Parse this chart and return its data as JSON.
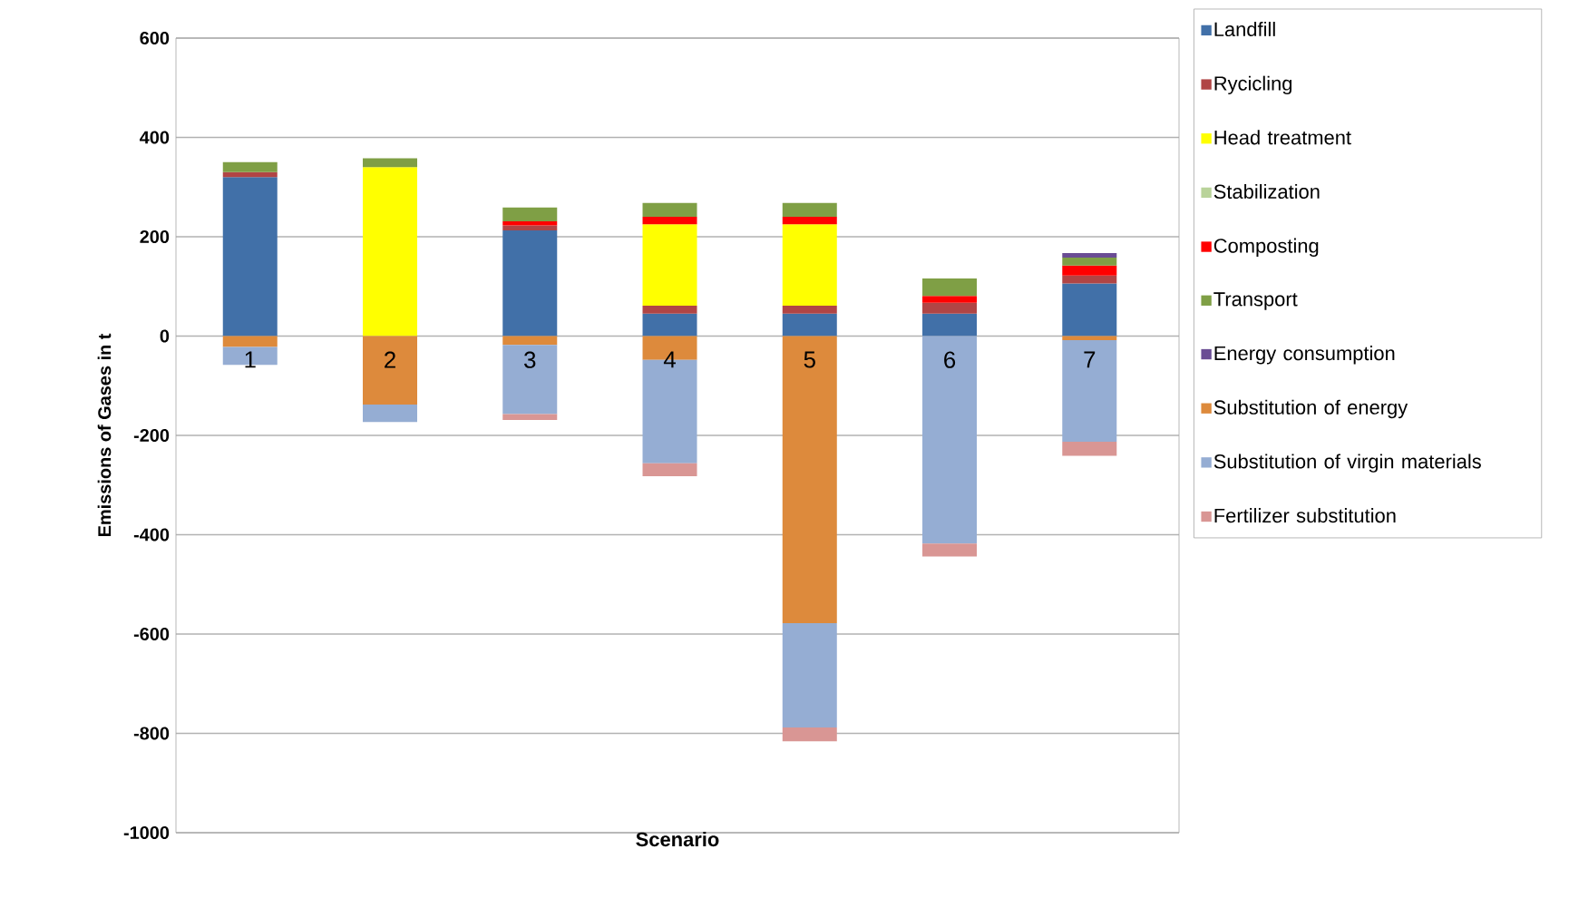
{
  "chart_data": {
    "type": "bar",
    "stacked": true,
    "xlabel": "Scenario",
    "ylabel": "Emissions of Gases in t",
    "categories": [
      "1",
      "2",
      "3",
      "4",
      "5",
      "6",
      "7"
    ],
    "series": [
      {
        "name": "Landfill",
        "color": "#4170a8",
        "values": [
          320,
          0,
          213,
          45,
          45,
          45,
          106
        ]
      },
      {
        "name": "Rycicling",
        "color": "#b04545",
        "values": [
          10,
          0,
          10,
          16,
          16,
          22,
          16
        ]
      },
      {
        "name": "Head treatment",
        "color": "#ffff00",
        "values": [
          0,
          340,
          0,
          164,
          164,
          0,
          0
        ]
      },
      {
        "name": "Stabilization",
        "color": "#b9d39a",
        "values": [
          0,
          0,
          0,
          0,
          0,
          0,
          0
        ]
      },
      {
        "name": "Composting",
        "color": "#ff0000",
        "values": [
          0,
          0,
          8,
          15,
          15,
          14,
          20
        ]
      },
      {
        "name": "Transport",
        "color": "#7f9f45",
        "values": [
          20,
          18,
          28,
          28,
          28,
          35,
          16
        ]
      },
      {
        "name": "Energy consumption",
        "color": "#6a4c94",
        "values": [
          0,
          0,
          0,
          0,
          0,
          0,
          9
        ]
      },
      {
        "name": "Substitution of energy",
        "color": "#dd8a3c",
        "values": [
          -22,
          -138,
          -18,
          -48,
          -578,
          0,
          -8
        ]
      },
      {
        "name": "Substitution of virgin materials",
        "color": "#95add3",
        "values": [
          -36,
          -35,
          -139,
          -208,
          -210,
          -418,
          -205
        ]
      },
      {
        "name": "Fertilizer substitution",
        "color": "#d99694",
        "values": [
          0,
          0,
          -12,
          -26,
          -28,
          -26,
          -28
        ]
      }
    ],
    "ylim": [
      -1000,
      600
    ],
    "yticks": [
      -1000,
      -800,
      -600,
      -400,
      -200,
      0,
      200,
      400,
      600
    ],
    "grid": "y",
    "legend": "right"
  }
}
